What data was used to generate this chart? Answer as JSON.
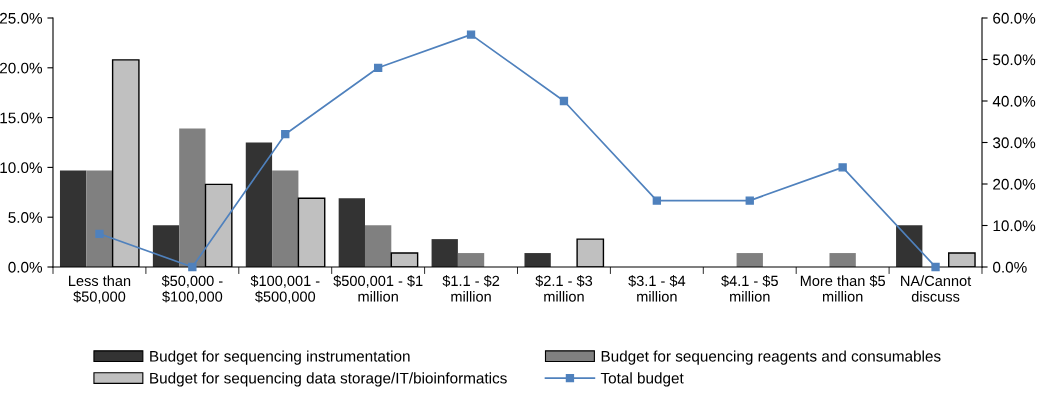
{
  "chart_data": {
    "type": "bar",
    "categories": [
      "Less than\n$50,000",
      "$50,000 -\n$100,000",
      "$100,001 -\n$500,000",
      "$500,001 - $1\nmillion",
      "$1.1 - $2\nmillion",
      "$2.1 - $3\nmillion",
      "$3.1 - $4\nmillion",
      "$4.1 - $5\nmillion",
      "More than $5\nmillion",
      "NA/Cannot\ndiscuss"
    ],
    "series": [
      {
        "name": "Budget for sequencing instrumentation",
        "color": "#333333",
        "values": [
          9.7,
          4.2,
          12.5,
          6.9,
          2.8,
          1.4,
          0,
          0,
          0,
          4.2
        ]
      },
      {
        "name": "Budget for sequencing reagents and consumables",
        "color": "#808080",
        "values": [
          9.7,
          13.9,
          9.7,
          4.2,
          1.4,
          0,
          0,
          1.4,
          1.4,
          0
        ]
      },
      {
        "name": "Budget for sequencing data storage/IT/bioinformatics",
        "color": "#c0c0c0",
        "values": [
          20.8,
          8.3,
          6.9,
          1.4,
          0,
          2.8,
          0,
          0,
          0,
          1.4
        ]
      },
      {
        "name": "Total budget",
        "type": "line",
        "axis": "y2",
        "marker": "square",
        "color": "#4f81bd",
        "values": [
          8,
          0,
          32,
          48,
          56,
          40,
          16,
          16,
          24,
          0
        ]
      }
    ],
    "ylim": [
      0,
      25
    ],
    "yticks": [
      {
        "value": 0,
        "label": "0.0%"
      },
      {
        "value": 5,
        "label": "5.0%"
      },
      {
        "value": 10,
        "label": "10.0%"
      },
      {
        "value": 15,
        "label": "15.0%"
      },
      {
        "value": 20,
        "label": "20.0%"
      },
      {
        "value": 25,
        "label": "25.0%"
      }
    ],
    "y2lim": [
      0,
      60
    ],
    "y2ticks": [
      {
        "value": 0,
        "label": "0.0%"
      },
      {
        "value": 10,
        "label": "10.0%"
      },
      {
        "value": 20,
        "label": "20.0%"
      },
      {
        "value": 30,
        "label": "30.0%"
      },
      {
        "value": 40,
        "label": "40.0%"
      },
      {
        "value": 50,
        "label": "50.0%"
      },
      {
        "value": 60,
        "label": "60.0%"
      }
    ],
    "grid": false,
    "legend": "bottom"
  }
}
